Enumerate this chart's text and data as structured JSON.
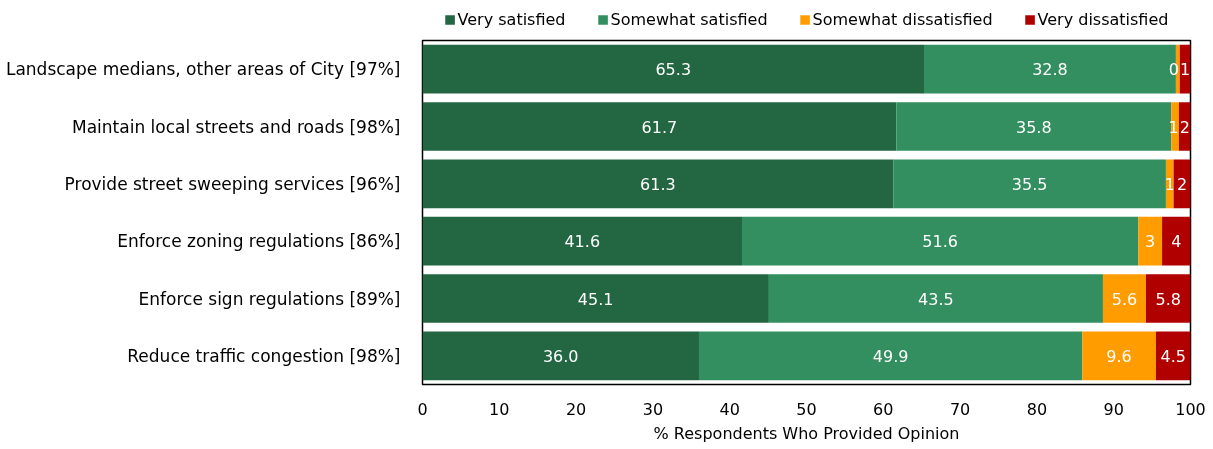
{
  "chart_data": {
    "type": "bar",
    "orientation": "horizontal",
    "stacked": true,
    "categories": [
      "Landscape medians, other areas of City [97%]",
      "Maintain local streets and roads [98%]",
      "Provide street sweeping services [96%]",
      "Enforce zoning regulations [86%]",
      "Enforce sign regulations [89%]",
      "Reduce traffic congestion [98%]"
    ],
    "series": [
      {
        "name": "Very satisfied",
        "color": "#236642",
        "values": [
          65.3,
          61.7,
          61.3,
          41.6,
          45.1,
          36.0
        ],
        "value_labels": [
          "65.3",
          "61.7",
          "61.3",
          "41.6",
          "45.1",
          "36.0"
        ]
      },
      {
        "name": "Somewhat satisfied",
        "color": "#338f60",
        "values": [
          32.8,
          35.8,
          35.5,
          51.6,
          43.5,
          49.9
        ],
        "value_labels": [
          "32.8",
          "35.8",
          "35.5",
          "51.6",
          "43.5",
          "49.9"
        ]
      },
      {
        "name": "Somewhat dissatisfied",
        "color": "#ff9c00",
        "values": [
          0.5,
          1.0,
          1.0,
          3.1,
          5.6,
          9.6
        ],
        "value_labels": [
          "0",
          "1",
          "1",
          "3",
          "5.6",
          "9.6"
        ]
      },
      {
        "name": "Very dissatisfied",
        "color": "#b00000",
        "values": [
          1.4,
          1.5,
          2.2,
          3.7,
          5.8,
          4.5
        ],
        "value_labels": [
          "1",
          "2",
          "2",
          "4",
          "5.8",
          "4.5"
        ]
      }
    ],
    "xlabel": "% Respondents Who Provided Opinion",
    "xlim": [
      0,
      100
    ],
    "xticks": [
      0,
      10,
      20,
      30,
      40,
      50,
      60,
      70,
      80,
      90,
      100
    ],
    "legend": "top",
    "grid": false
  }
}
